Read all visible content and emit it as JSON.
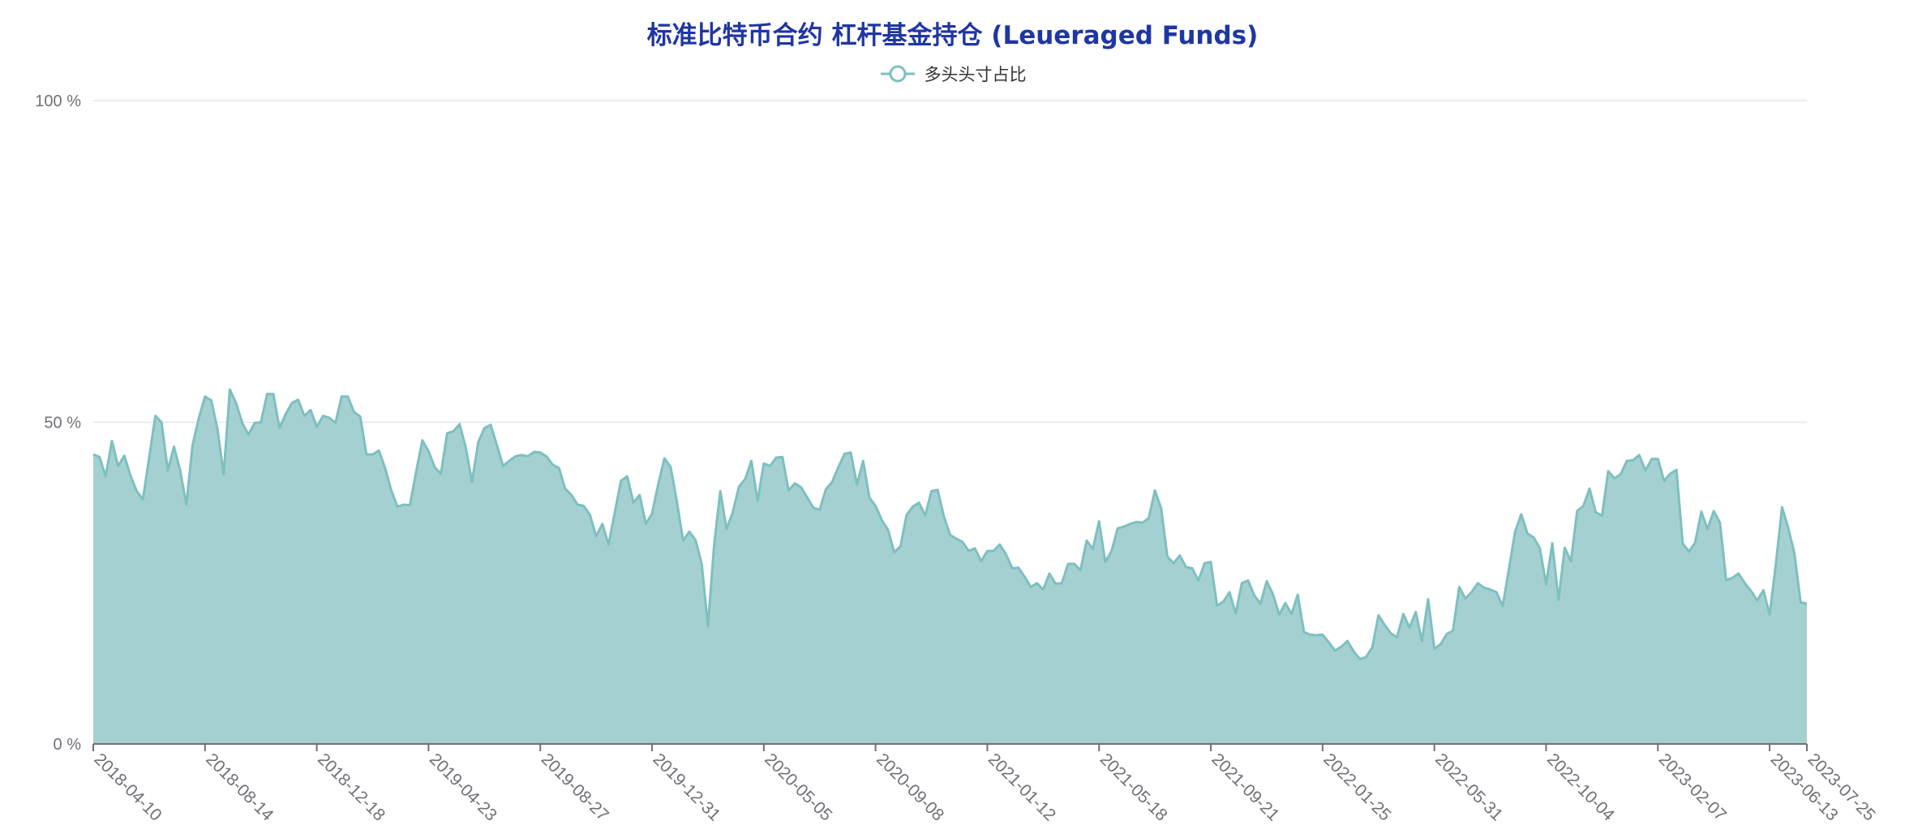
{
  "chart_data": {
    "type": "area",
    "title": "标准比特币合约 杠杆基金持仓 (Leueraged Funds)",
    "legend": {
      "position": "top-center",
      "entries": [
        "多头头寸占比"
      ]
    },
    "grid": true,
    "colors": {
      "line": "#7ebfc0",
      "fill": "#a5d0d1",
      "title": "#1f36a3",
      "grid": "#e0e6f1",
      "axis": "#6e7079"
    },
    "x_range": [
      "2018-04-10",
      "2023-07-25"
    ],
    "y_range": [
      0,
      100
    ],
    "y_unit": "%",
    "y_ticks": [
      0,
      50,
      100
    ],
    "y_tick_labels": [
      "0 %",
      "50 %",
      "100 %"
    ],
    "x_ticks": [
      "2018-04-10",
      "2018-08-14",
      "2018-12-18",
      "2019-04-23",
      "2019-08-27",
      "2019-12-31",
      "2020-05-05",
      "2020-09-08",
      "2021-01-12",
      "2021-05-18",
      "2021-09-21",
      "2022-01-25",
      "2022-05-31",
      "2022-10-04",
      "2023-02-07",
      "2023-06-13",
      "2023-07-25"
    ],
    "series": [
      {
        "name": "多头头寸占比",
        "points": [
          [
            "2018-04-10",
            45.0
          ],
          [
            "2018-04-17",
            44.6
          ],
          [
            "2018-04-24",
            41.6
          ],
          [
            "2018-05-01",
            47.1
          ],
          [
            "2018-05-08",
            43.2
          ],
          [
            "2018-05-15",
            44.8
          ],
          [
            "2018-05-22",
            41.7
          ],
          [
            "2018-05-29",
            39.3
          ],
          [
            "2018-06-05",
            38.0
          ],
          [
            "2018-06-12",
            44.5
          ],
          [
            "2018-06-19",
            51.0
          ],
          [
            "2018-06-26",
            50.0
          ],
          [
            "2018-07-03",
            42.5
          ],
          [
            "2018-07-10",
            46.2
          ],
          [
            "2018-07-17",
            42.5
          ],
          [
            "2018-07-24",
            37.2
          ],
          [
            "2018-07-31",
            46.5
          ],
          [
            "2018-08-07",
            50.6
          ],
          [
            "2018-08-14",
            54.0
          ],
          [
            "2018-08-21",
            53.4
          ],
          [
            "2018-08-28",
            49.0
          ],
          [
            "2018-09-04",
            41.9
          ],
          [
            "2018-09-11",
            55.1
          ],
          [
            "2018-09-18",
            53.0
          ],
          [
            "2018-09-25",
            49.9
          ],
          [
            "2018-10-02",
            48.1
          ],
          [
            "2018-10-09",
            49.9
          ],
          [
            "2018-10-16",
            50.0
          ],
          [
            "2018-10-23",
            54.4
          ],
          [
            "2018-10-30",
            54.4
          ],
          [
            "2018-11-06",
            49.1
          ],
          [
            "2018-11-13",
            51.3
          ],
          [
            "2018-11-20",
            53.0
          ],
          [
            "2018-11-27",
            53.5
          ],
          [
            "2018-12-04",
            51.0
          ],
          [
            "2018-12-11",
            51.9
          ],
          [
            "2018-12-18",
            49.3
          ],
          [
            "2018-12-25",
            51.0
          ],
          [
            "2019-01-01",
            50.7
          ],
          [
            "2019-01-08",
            49.9
          ],
          [
            "2019-01-15",
            54.0
          ],
          [
            "2019-01-22",
            54.0
          ],
          [
            "2019-01-29",
            51.6
          ],
          [
            "2019-02-05",
            50.9
          ],
          [
            "2019-02-12",
            45.0
          ],
          [
            "2019-02-19",
            45.0
          ],
          [
            "2019-02-26",
            45.6
          ],
          [
            "2019-03-05",
            42.9
          ],
          [
            "2019-03-12",
            39.4
          ],
          [
            "2019-03-19",
            36.9
          ],
          [
            "2019-03-26",
            37.2
          ],
          [
            "2019-04-02",
            37.1
          ],
          [
            "2019-04-09",
            42.3
          ],
          [
            "2019-04-16",
            47.2
          ],
          [
            "2019-04-23",
            45.5
          ],
          [
            "2019-04-30",
            43.0
          ],
          [
            "2019-05-07",
            42.0
          ],
          [
            "2019-05-14",
            48.3
          ],
          [
            "2019-05-21",
            48.6
          ],
          [
            "2019-05-28",
            49.7
          ],
          [
            "2019-06-04",
            46.1
          ],
          [
            "2019-06-11",
            40.7
          ],
          [
            "2019-06-18",
            46.9
          ],
          [
            "2019-06-25",
            49.1
          ],
          [
            "2019-07-02",
            49.6
          ],
          [
            "2019-07-09",
            46.5
          ],
          [
            "2019-07-16",
            43.2
          ],
          [
            "2019-07-23",
            44.0
          ],
          [
            "2019-07-30",
            44.7
          ],
          [
            "2019-08-06",
            44.9
          ],
          [
            "2019-08-13",
            44.7
          ],
          [
            "2019-08-20",
            45.4
          ],
          [
            "2019-08-27",
            45.3
          ],
          [
            "2019-09-03",
            44.7
          ],
          [
            "2019-09-10",
            43.4
          ],
          [
            "2019-09-17",
            42.9
          ],
          [
            "2019-09-24",
            39.7
          ],
          [
            "2019-10-01",
            38.7
          ],
          [
            "2019-10-08",
            37.2
          ],
          [
            "2019-10-15",
            37.0
          ],
          [
            "2019-10-22",
            35.6
          ],
          [
            "2019-10-29",
            32.3
          ],
          [
            "2019-11-05",
            34.2
          ],
          [
            "2019-11-12",
            31.0
          ],
          [
            "2019-11-19",
            36.0
          ],
          [
            "2019-11-26",
            40.9
          ],
          [
            "2019-12-03",
            41.6
          ],
          [
            "2019-12-10",
            37.5
          ],
          [
            "2019-12-17",
            38.7
          ],
          [
            "2019-12-24",
            34.2
          ],
          [
            "2019-12-31",
            35.8
          ],
          [
            "2020-01-07",
            40.4
          ],
          [
            "2020-01-14",
            44.4
          ],
          [
            "2020-01-21",
            43.0
          ],
          [
            "2020-01-28",
            37.7
          ],
          [
            "2020-02-04",
            31.6
          ],
          [
            "2020-02-11",
            33.0
          ],
          [
            "2020-02-18",
            31.7
          ],
          [
            "2020-02-25",
            28.0
          ],
          [
            "2020-03-03",
            18.3
          ],
          [
            "2020-03-10",
            31.0
          ],
          [
            "2020-03-17",
            39.3
          ],
          [
            "2020-03-24",
            33.4
          ],
          [
            "2020-03-31",
            36.0
          ],
          [
            "2020-04-07",
            40.0
          ],
          [
            "2020-04-14",
            41.2
          ],
          [
            "2020-04-21",
            44.0
          ],
          [
            "2020-04-28",
            37.8
          ],
          [
            "2020-05-05",
            43.6
          ],
          [
            "2020-05-12",
            43.2
          ],
          [
            "2020-05-19",
            44.5
          ],
          [
            "2020-05-26",
            44.6
          ],
          [
            "2020-06-02",
            39.4
          ],
          [
            "2020-06-09",
            40.5
          ],
          [
            "2020-06-16",
            39.9
          ],
          [
            "2020-06-23",
            38.3
          ],
          [
            "2020-06-30",
            36.7
          ],
          [
            "2020-07-07",
            36.4
          ],
          [
            "2020-07-14",
            39.6
          ],
          [
            "2020-07-21",
            40.7
          ],
          [
            "2020-07-28",
            43.0
          ],
          [
            "2020-08-04",
            45.1
          ],
          [
            "2020-08-11",
            45.3
          ],
          [
            "2020-08-18",
            40.3
          ],
          [
            "2020-08-25",
            44.0
          ],
          [
            "2020-09-01",
            38.3
          ],
          [
            "2020-09-08",
            37.0
          ],
          [
            "2020-09-15",
            34.8
          ],
          [
            "2020-09-22",
            33.3
          ],
          [
            "2020-09-29",
            29.8
          ],
          [
            "2020-10-06",
            30.7
          ],
          [
            "2020-10-13",
            35.6
          ],
          [
            "2020-10-20",
            36.9
          ],
          [
            "2020-10-27",
            37.5
          ],
          [
            "2020-11-03",
            35.5
          ],
          [
            "2020-11-10",
            39.3
          ],
          [
            "2020-11-17",
            39.5
          ],
          [
            "2020-11-24",
            35.4
          ],
          [
            "2020-12-01",
            32.5
          ],
          [
            "2020-12-08",
            31.9
          ],
          [
            "2020-12-15",
            31.4
          ],
          [
            "2020-12-22",
            30.0
          ],
          [
            "2020-12-29",
            30.4
          ],
          [
            "2021-01-05",
            28.4
          ],
          [
            "2021-01-12",
            30.0
          ],
          [
            "2021-01-19",
            30.0
          ],
          [
            "2021-01-26",
            31.0
          ],
          [
            "2021-02-02",
            29.5
          ],
          [
            "2021-02-09",
            27.3
          ],
          [
            "2021-02-16",
            27.4
          ],
          [
            "2021-02-23",
            26.0
          ],
          [
            "2021-03-02",
            24.4
          ],
          [
            "2021-03-09",
            25.0
          ],
          [
            "2021-03-16",
            24.0
          ],
          [
            "2021-03-23",
            26.5
          ],
          [
            "2021-03-30",
            24.9
          ],
          [
            "2021-04-06",
            25.0
          ],
          [
            "2021-04-13",
            28.0
          ],
          [
            "2021-04-20",
            28.0
          ],
          [
            "2021-04-27",
            27.0
          ],
          [
            "2021-05-04",
            31.6
          ],
          [
            "2021-05-11",
            30.3
          ],
          [
            "2021-05-18",
            34.6
          ],
          [
            "2021-05-25",
            28.3
          ],
          [
            "2021-06-01",
            30.0
          ],
          [
            "2021-06-08",
            33.5
          ],
          [
            "2021-06-15",
            33.8
          ],
          [
            "2021-06-22",
            34.2
          ],
          [
            "2021-06-29",
            34.5
          ],
          [
            "2021-07-06",
            34.4
          ],
          [
            "2021-07-13",
            35.1
          ],
          [
            "2021-07-20",
            39.4
          ],
          [
            "2021-07-27",
            36.6
          ],
          [
            "2021-08-03",
            29.1
          ],
          [
            "2021-08-10",
            28.1
          ],
          [
            "2021-08-17",
            29.3
          ],
          [
            "2021-08-24",
            27.5
          ],
          [
            "2021-08-31",
            27.3
          ],
          [
            "2021-09-07",
            25.4
          ],
          [
            "2021-09-14",
            28.1
          ],
          [
            "2021-09-21",
            28.3
          ],
          [
            "2021-09-28",
            21.5
          ],
          [
            "2021-10-05",
            22.1
          ],
          [
            "2021-10-12",
            23.6
          ],
          [
            "2021-10-19",
            20.3
          ],
          [
            "2021-10-26",
            25.0
          ],
          [
            "2021-11-02",
            25.4
          ],
          [
            "2021-11-09",
            23.1
          ],
          [
            "2021-11-16",
            21.8
          ],
          [
            "2021-11-23",
            25.3
          ],
          [
            "2021-11-30",
            23.3
          ],
          [
            "2021-12-07",
            20.1
          ],
          [
            "2021-12-14",
            21.9
          ],
          [
            "2021-12-21",
            20.2
          ],
          [
            "2021-12-28",
            23.2
          ],
          [
            "2022-01-04",
            17.4
          ],
          [
            "2022-01-11",
            17.0
          ],
          [
            "2022-01-18",
            16.9
          ],
          [
            "2022-01-25",
            17.0
          ],
          [
            "2022-02-01",
            15.8
          ],
          [
            "2022-02-08",
            14.5
          ],
          [
            "2022-02-15",
            15.1
          ],
          [
            "2022-02-22",
            16.0
          ],
          [
            "2022-03-01",
            14.4
          ],
          [
            "2022-03-08",
            13.2
          ],
          [
            "2022-03-15",
            13.5
          ],
          [
            "2022-03-22",
            15.0
          ],
          [
            "2022-03-29",
            20.0
          ],
          [
            "2022-04-05",
            18.5
          ],
          [
            "2022-04-12",
            17.2
          ],
          [
            "2022-04-19",
            16.6
          ],
          [
            "2022-04-26",
            20.2
          ],
          [
            "2022-05-03",
            18.1
          ],
          [
            "2022-05-10",
            20.5
          ],
          [
            "2022-05-17",
            16.0
          ],
          [
            "2022-05-24",
            22.5
          ],
          [
            "2022-05-31",
            14.8
          ],
          [
            "2022-06-07",
            15.5
          ],
          [
            "2022-06-14",
            17.1
          ],
          [
            "2022-06-21",
            17.6
          ],
          [
            "2022-06-28",
            24.4
          ],
          [
            "2022-07-05",
            22.6
          ],
          [
            "2022-07-12",
            23.6
          ],
          [
            "2022-07-19",
            25.0
          ],
          [
            "2022-07-26",
            24.3
          ],
          [
            "2022-08-02",
            24.0
          ],
          [
            "2022-08-09",
            23.6
          ],
          [
            "2022-08-16",
            21.4
          ],
          [
            "2022-08-23",
            27.1
          ],
          [
            "2022-08-30",
            33.0
          ],
          [
            "2022-09-06",
            35.7
          ],
          [
            "2022-09-13",
            32.7
          ],
          [
            "2022-09-20",
            32.1
          ],
          [
            "2022-09-27",
            30.4
          ],
          [
            "2022-10-04",
            24.8
          ],
          [
            "2022-10-11",
            31.2
          ],
          [
            "2022-10-18",
            22.4
          ],
          [
            "2022-10-25",
            30.5
          ],
          [
            "2022-11-01",
            28.4
          ],
          [
            "2022-11-08",
            36.2
          ],
          [
            "2022-11-15",
            37.0
          ],
          [
            "2022-11-22",
            39.7
          ],
          [
            "2022-11-29",
            36.0
          ],
          [
            "2022-12-06",
            35.5
          ],
          [
            "2022-12-13",
            42.4
          ],
          [
            "2022-12-20",
            41.3
          ],
          [
            "2022-12-27",
            41.9
          ],
          [
            "2023-01-03",
            44.0
          ],
          [
            "2023-01-10",
            44.1
          ],
          [
            "2023-01-17",
            44.9
          ],
          [
            "2023-01-24",
            42.5
          ],
          [
            "2023-01-31",
            44.3
          ],
          [
            "2023-02-07",
            44.3
          ],
          [
            "2023-02-14",
            40.9
          ],
          [
            "2023-02-21",
            42.0
          ],
          [
            "2023-02-28",
            42.6
          ],
          [
            "2023-03-07",
            31.2
          ],
          [
            "2023-03-14",
            29.9
          ],
          [
            "2023-03-21",
            31.3
          ],
          [
            "2023-03-28",
            36.1
          ],
          [
            "2023-04-04",
            33.4
          ],
          [
            "2023-04-11",
            36.2
          ],
          [
            "2023-04-18",
            34.4
          ],
          [
            "2023-04-25",
            25.5
          ],
          [
            "2023-05-02",
            25.8
          ],
          [
            "2023-05-09",
            26.5
          ],
          [
            "2023-05-16",
            25.0
          ],
          [
            "2023-05-23",
            23.8
          ],
          [
            "2023-05-30",
            22.3
          ],
          [
            "2023-06-06",
            23.9
          ],
          [
            "2023-06-13",
            20.1
          ],
          [
            "2023-06-20",
            27.9
          ],
          [
            "2023-06-27",
            36.8
          ],
          [
            "2023-07-04",
            33.6
          ],
          [
            "2023-07-11",
            29.6
          ],
          [
            "2023-07-18",
            22.0
          ],
          [
            "2023-07-25",
            21.8
          ]
        ]
      }
    ]
  }
}
